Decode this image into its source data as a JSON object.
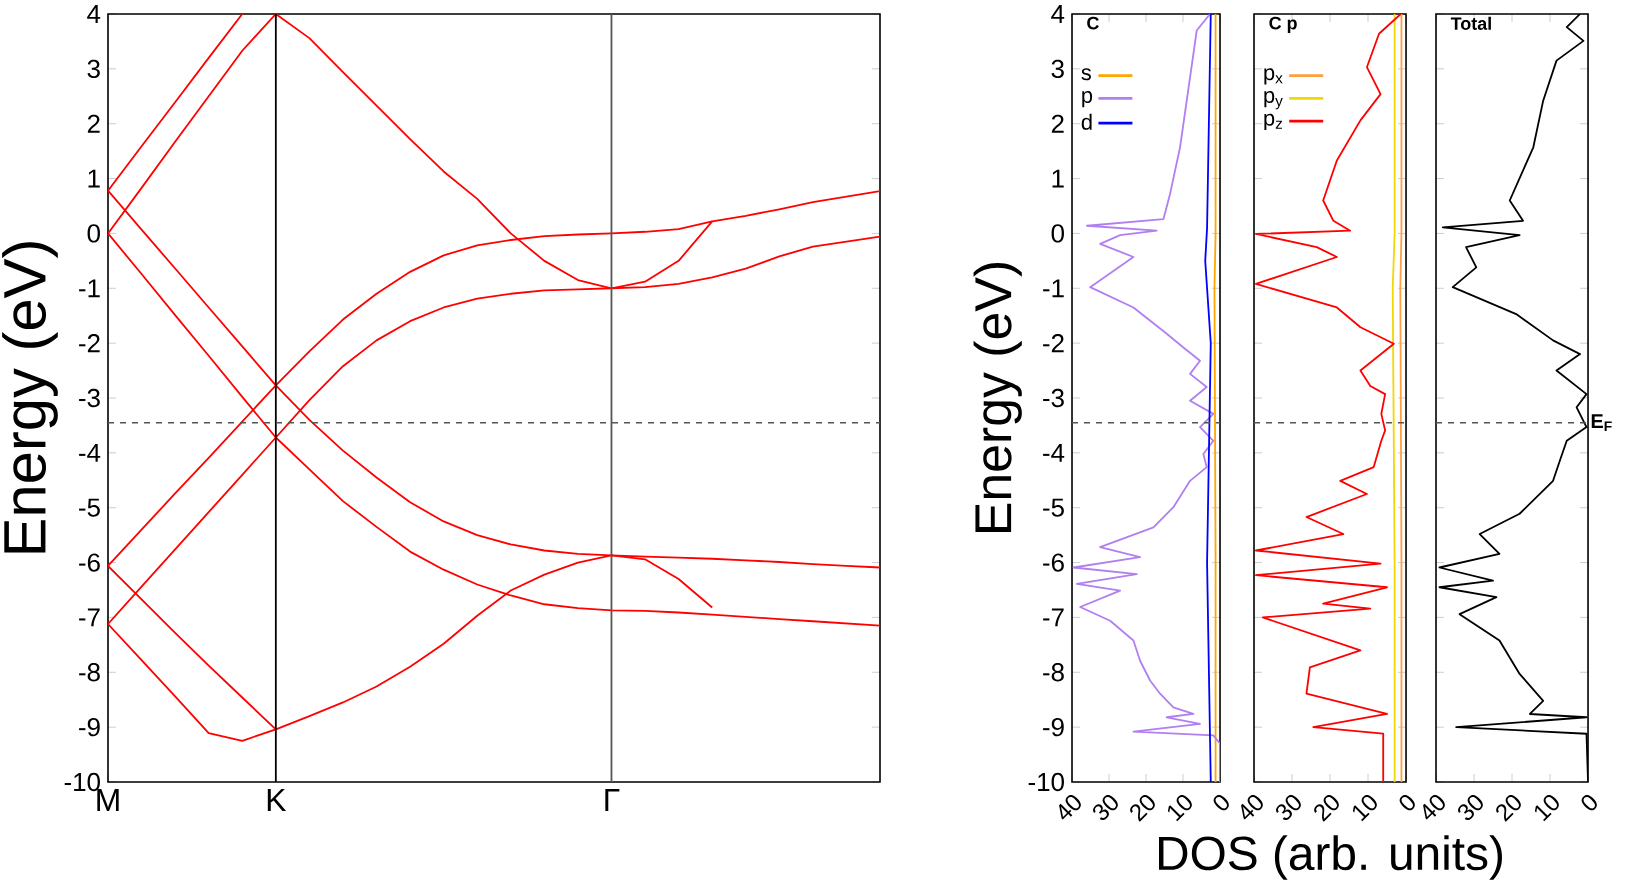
{
  "chart_data": [
    {
      "type": "line",
      "ylabel": "Energy (eV)",
      "categories": [
        "M",
        null,
        null,
        null,
        null,
        "K",
        null,
        null,
        null,
        null,
        null,
        null,
        null,
        null,
        null,
        "Γ",
        null,
        null,
        null,
        null,
        null,
        null,
        null,
        null
      ],
      "ylim": [
        -10,
        4
      ],
      "yticks": [
        -10,
        -9,
        -8,
        -7,
        -6,
        -5,
        -4,
        -3,
        -2,
        -1,
        0,
        1,
        2,
        3,
        4
      ],
      "ref_lines": [
        {
          "axis": "x",
          "value": "K",
          "color": "#000000"
        },
        {
          "axis": "x",
          "value": "Γ",
          "color": "#555555"
        },
        {
          "axis": "y",
          "value": -3.45,
          "color": "#555555",
          "line_style": "dashed"
        }
      ],
      "series": [
        {
          "color": "#ff0000",
          "values": [
            0.78,
            1.59,
            2.39,
            3.2,
            4.0,
            null,
            null,
            null,
            null,
            null,
            null,
            null,
            null,
            null,
            null,
            null,
            null,
            null,
            null,
            null,
            null,
            null,
            null,
            null
          ]
        },
        {
          "color": "#ff0000",
          "values": [
            0,
            0.83,
            1.67,
            2.5,
            3.33,
            4.0,
            null,
            null,
            null,
            null,
            null,
            null,
            null,
            null,
            null,
            null,
            null,
            null,
            null,
            null,
            null,
            null,
            null,
            null
          ]
        },
        {
          "color": "#ff0000",
          "values": [
            null,
            null,
            null,
            null,
            null,
            4.0,
            3.56,
            2.94,
            2.33,
            1.72,
            1.13,
            0.63,
            0.0,
            -0.5,
            -0.85,
            -1.0,
            -0.88,
            -0.5,
            0.22,
            0.32,
            0.44,
            0.57,
            0.67,
            0.77
          ]
        },
        {
          "color": "#ff0000",
          "values": [
            -6.06,
            -5.4,
            -4.74,
            -4.09,
            -3.43,
            -2.77,
            -2.15,
            -1.57,
            -1.1,
            -0.7,
            -0.4,
            -0.22,
            -0.12,
            -0.05,
            -0.02,
            0,
            0.03,
            0.08,
            0.22,
            null,
            null,
            null,
            null,
            null
          ]
        },
        {
          "color": "#ff0000",
          "values": [
            -7.12,
            -6.44,
            -5.76,
            -5.08,
            -4.4,
            -3.72,
            -3.04,
            -2.42,
            -1.95,
            -1.6,
            -1.35,
            -1.19,
            -1.1,
            -1.04,
            -1.02,
            -1.0,
            -0.98,
            -0.92,
            -0.8,
            -0.64,
            -0.42,
            -0.24,
            -0.15,
            -0.06
          ]
        },
        {
          "color": "#ff0000",
          "values": [
            0.78,
            0.07,
            -0.64,
            -1.35,
            -2.06,
            -2.77,
            -3.4,
            -3.96,
            -4.45,
            -4.9,
            -5.25,
            -5.5,
            -5.67,
            -5.78,
            -5.84,
            -5.87,
            -5.89,
            -5.91,
            -5.93,
            -5.96,
            -5.99,
            -6.03,
            -6.06,
            -6.09
          ]
        },
        {
          "color": "#ff0000",
          "values": [
            0,
            -0.74,
            -1.49,
            -2.23,
            -2.98,
            -3.72,
            -4.3,
            -4.88,
            -5.35,
            -5.8,
            -6.13,
            -6.4,
            -6.6,
            -6.76,
            -6.83,
            -6.87,
            -6.88,
            -6.91,
            -6.95,
            -6.99,
            -7.03,
            -7.07,
            -7.11,
            -7.15
          ]
        },
        {
          "color": "#ff0000",
          "values": [
            -7.12,
            -7.78,
            -8.44,
            -9.11,
            -9.25,
            -9.04,
            -8.8,
            -8.55,
            -8.26,
            -7.9,
            -7.48,
            -6.97,
            -6.51,
            -6.22,
            -6.0,
            -5.87,
            -5.94,
            -6.3,
            -6.82,
            null,
            null,
            null,
            null,
            null
          ]
        },
        {
          "color": "#ff0000",
          "values": [
            -6.06,
            -6.67,
            -7.28,
            -7.88,
            -8.46,
            -9.04,
            null,
            null,
            null,
            null,
            null,
            null,
            null,
            null,
            null,
            null,
            null,
            null,
            null,
            null,
            null,
            null,
            null,
            null
          ]
        }
      ]
    },
    {
      "type": "line",
      "title": "C",
      "ylabel": "Energy (eV)",
      "legend": "top left",
      "xlim": [
        40,
        0
      ],
      "xticks": [
        40,
        30,
        20,
        10,
        0
      ],
      "ylim": [
        -10,
        4
      ],
      "yticks": [
        -10,
        -9,
        -8,
        -7,
        -6,
        -5,
        -4,
        -3,
        -2,
        -1,
        0,
        1,
        2,
        3,
        4
      ],
      "ref_lines": [
        {
          "axis": "y",
          "value": -3.45,
          "color": "#555555",
          "line_style": "dashed"
        }
      ],
      "series": [
        {
          "name": "s",
          "color": "#ffa500",
          "x": [
            1.2,
            1.2,
            1.5,
            1.2,
            1.2
          ],
          "values": [
            4,
            0,
            -1,
            -6,
            -10
          ]
        },
        {
          "name": "p",
          "color": "#b07ff0",
          "x": [
            2.7,
            6.3,
            7.2,
            9.0,
            10.8,
            13.5,
            15.3,
            36.0,
            17.1,
            27,
            32.4,
            23.4,
            35.1,
            23.4,
            14.4,
            9.9,
            5.4,
            8.1,
            3.6,
            8.1,
            1.8,
            5.4,
            1.8,
            4.5,
            3.6,
            8.1,
            12.6,
            18.0,
            32.4,
            21.6,
            39.6,
            22.5,
            38.7,
            27.0,
            37.8,
            29.7,
            23.4,
            21.6,
            18.9,
            16.2,
            12.6,
            7.2,
            14.4,
            5.4,
            23.4,
            1.8,
            0,
            0
          ],
          "values": [
            4.0,
            3.7,
            3.27,
            2.42,
            1.57,
            0.72,
            0.26,
            0.14,
            0.05,
            -0.03,
            -0.19,
            -0.43,
            -0.98,
            -1.35,
            -1.83,
            -2.08,
            -2.32,
            -2.56,
            -2.8,
            -3.05,
            -3.29,
            -3.53,
            -3.78,
            -4.02,
            -4.26,
            -4.51,
            -4.99,
            -5.36,
            -5.72,
            -5.9,
            -6.09,
            -6.21,
            -6.39,
            -6.51,
            -6.81,
            -7.06,
            -7.42,
            -7.79,
            -8.15,
            -8.39,
            -8.64,
            -8.76,
            -8.82,
            -8.94,
            -9.08,
            -9.15,
            -9.3,
            -10
          ]
        },
        {
          "name": "d",
          "color": "#0000ff",
          "x": [
            2.5,
            3.5,
            4,
            3.5,
            2.5,
            3.5,
            2.5
          ],
          "values": [
            4,
            0.1,
            -0.5,
            -1,
            -2,
            -6,
            -10
          ]
        }
      ]
    },
    {
      "type": "line",
      "title": "C p",
      "xlabel": "DOS (arb. units)",
      "legend": "top left",
      "tick_labels": "x",
      "xlim": [
        40,
        0
      ],
      "xticks": [
        40,
        30,
        20,
        10,
        0
      ],
      "ylim": [
        -10,
        4
      ],
      "yticks": [
        -10,
        -9,
        -8,
        -7,
        -6,
        -5,
        -4,
        -3,
        -2,
        -1,
        0,
        1,
        2,
        3,
        4
      ],
      "ref_lines": [
        {
          "axis": "y",
          "value": -3.45,
          "color": "#555555",
          "line_style": "dashed"
        }
      ],
      "series": [
        {
          "name": "p$_{x}$",
          "color": "#ff9f40",
          "x": [
            1.2,
            1.2,
            1.5,
            1.2,
            1.2
          ],
          "values": [
            4,
            0,
            -1,
            -6,
            -10
          ]
        },
        {
          "name": "p$_{y}$",
          "color": "#f0d800",
          "x": [
            3,
            3,
            3.5,
            3,
            3
          ],
          "values": [
            4,
            0,
            -1,
            -6,
            -10
          ]
        },
        {
          "name": "p$_{z}$",
          "color": "#ff0000",
          "x": [
            1.4,
            7.1,
            10.3,
            6.7,
            12.0,
            18.2,
            21.8,
            19.1,
            14.7,
            39.5,
            23.5,
            18.2,
            39.5,
            18.2,
            12.0,
            3.2,
            12.0,
            9.4,
            5.5,
            6.5,
            5.5,
            6.5,
            8.5,
            17.3,
            10.3,
            26.2,
            16.5,
            39.5,
            6.7,
            39.5,
            5.0,
            21.8,
            9.4,
            37.7,
            12.0,
            25.3,
            26.2,
            5.0,
            24.4,
            6.0,
            6.0
          ],
          "values": [
            4.0,
            3.64,
            3.03,
            2.54,
            2.06,
            1.33,
            0.6,
            0.23,
            0.05,
            -0.01,
            -0.25,
            -0.43,
            -0.92,
            -1.35,
            -1.71,
            -2.01,
            -2.5,
            -2.78,
            -2.93,
            -3.29,
            -3.59,
            -3.78,
            -4.26,
            -4.51,
            -4.75,
            -5.17,
            -5.48,
            -5.78,
            -6.02,
            -6.23,
            -6.45,
            -6.75,
            -6.84,
            -7.0,
            -7.6,
            -7.91,
            -8.39,
            -8.76,
            -9.0,
            -9.12,
            -10
          ]
        }
      ]
    },
    {
      "type": "line",
      "title": "Total",
      "tick_labels": "x",
      "xlim": [
        40,
        0
      ],
      "xticks": [
        40,
        30,
        20,
        10,
        0
      ],
      "ylim": [
        -10,
        4
      ],
      "yticks": [
        -10,
        -9,
        -8,
        -7,
        -6,
        -5,
        -4,
        -3,
        -2,
        -1,
        0,
        1,
        2,
        3,
        4
      ],
      "ref_lines": [
        {
          "axis": "y",
          "value": -3.45,
          "color": "#555555",
          "line_style": "dashed",
          "label": "E$_{F}$"
        }
      ],
      "series": [
        {
          "color": "#000000",
          "x": [
            2.1,
            5.6,
            1.2,
            8.3,
            11.8,
            14.4,
            20.6,
            17.1,
            38.2,
            18.0,
            32.1,
            29.4,
            35.6,
            18.9,
            9.2,
            2.1,
            8.3,
            0.4,
            3.0,
            0.4,
            5.6,
            7.4,
            9.2,
            18.0,
            28.5,
            23.3,
            39.1,
            25.0,
            39.1,
            24.1,
            33.8,
            23.3,
            18.0,
            11.8,
            15.3,
            0.4,
            34.7,
            0.4,
            0
          ],
          "values": [
            4.0,
            3.76,
            3.51,
            3.15,
            2.42,
            1.57,
            0.6,
            0.23,
            0.11,
            -0.03,
            -0.25,
            -0.62,
            -0.98,
            -1.47,
            -1.95,
            -2.2,
            -2.5,
            -2.93,
            -3.17,
            -3.53,
            -3.78,
            -4.14,
            -4.51,
            -5.11,
            -5.48,
            -5.84,
            -6.09,
            -6.33,
            -6.45,
            -6.63,
            -6.94,
            -7.42,
            -8.03,
            -8.52,
            -8.76,
            -8.82,
            -9.0,
            -9.12,
            -10
          ]
        }
      ]
    }
  ]
}
